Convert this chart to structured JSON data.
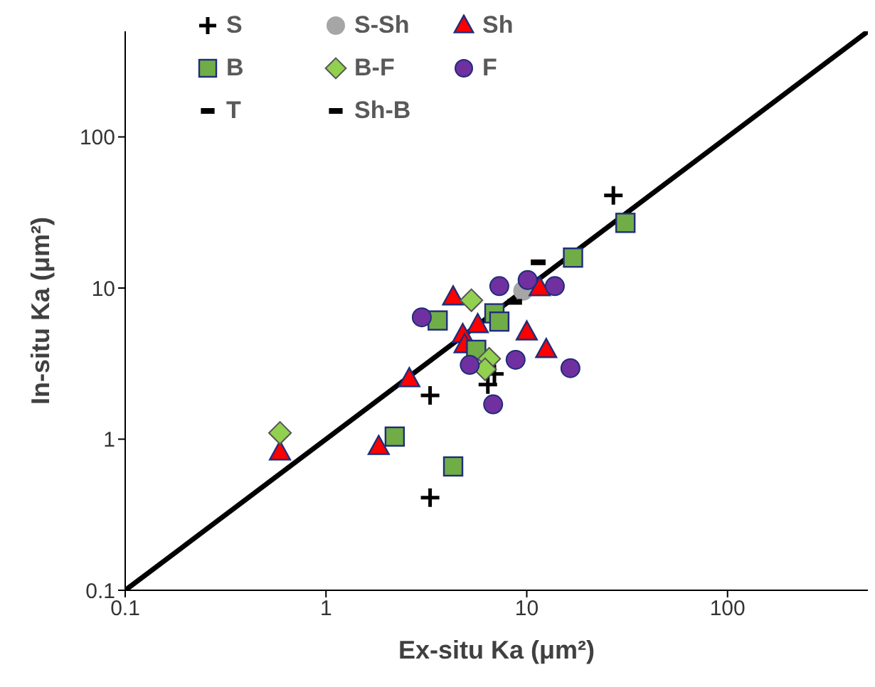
{
  "chart_data": {
    "type": "scatter",
    "xlabel": "Ex-situ Ka (μm²)",
    "ylabel": "In-situ Ka (μm²)",
    "log": "xy",
    "xlim": [
      0.1,
      500
    ],
    "ylim": [
      0.1,
      500
    ],
    "xticks": [
      0.1,
      1,
      10,
      100
    ],
    "yticks": [
      0.1,
      1,
      10,
      100
    ],
    "grid": false,
    "legend": "top left",
    "series": [
      {
        "name": "S",
        "color": "#000000",
        "marker": "cross",
        "x": [
          27,
          3.3,
          3.3,
          6.9,
          6.4
        ],
        "values": [
          41,
          1.95,
          0.41,
          2.7,
          2.3
        ]
      },
      {
        "name": "S-Sh",
        "color": "#a6a6a6",
        "marker": "circle",
        "x": [
          9.6
        ],
        "values": [
          9.6
        ]
      },
      {
        "name": "Sh",
        "color": "#ff0000",
        "marker": "triangle",
        "x": [
          4.3,
          11.6,
          5.7,
          4.8,
          4.9,
          10,
          12.5,
          2.6,
          1.83,
          0.59
        ],
        "values": [
          8.7,
          10,
          5.7,
          4.9,
          4.2,
          5.1,
          3.9,
          2.5,
          0.89,
          0.82
        ]
      },
      {
        "name": "B",
        "color": "#70ad47",
        "marker": "square",
        "x": [
          31,
          17,
          3.6,
          6.9,
          7.3,
          5.6,
          2.2,
          4.3
        ],
        "values": [
          27,
          15.9,
          6.1,
          6.8,
          6,
          3.9,
          1.04,
          0.66
        ]
      },
      {
        "name": "B-F",
        "color": "#92d050",
        "marker": "diamond",
        "x": [
          5.3,
          6.5,
          6.2,
          0.59
        ],
        "values": [
          8.3,
          3.4,
          2.9,
          1.1
        ]
      },
      {
        "name": "F",
        "color": "#7030a0",
        "marker": "circle",
        "x": [
          7.3,
          10.1,
          13.8,
          3,
          5.2,
          8.8,
          16.5,
          6.8
        ],
        "values": [
          10.3,
          11.3,
          10.3,
          6.4,
          3.1,
          3.35,
          2.95,
          1.7
        ]
      },
      {
        "name": "T",
        "color": "#000000",
        "x": [
          8.7
        ],
        "values": [
          8.1
        ]
      },
      {
        "name": "Sh-B",
        "color": "#000000",
        "x": [
          11.4
        ],
        "values": [
          14.8
        ]
      },
      {
        "type": "line",
        "color": "#000000",
        "marker": "none",
        "x": [
          0.1,
          500
        ],
        "values": [
          0.1,
          500
        ]
      }
    ]
  }
}
